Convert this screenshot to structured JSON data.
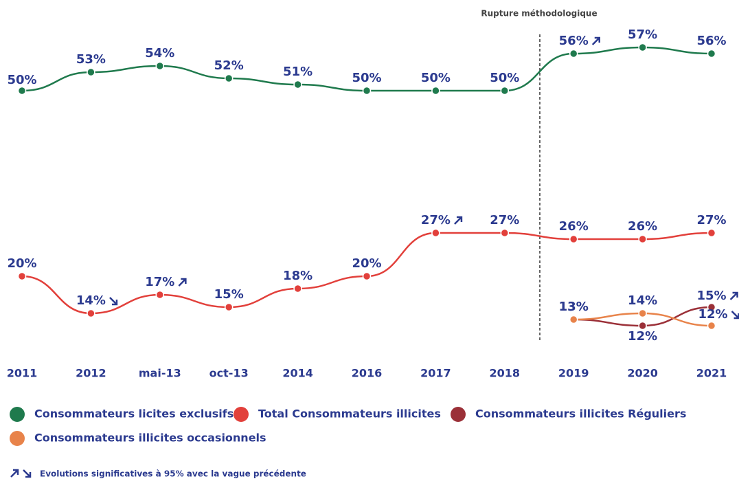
{
  "chart_data": {
    "type": "line",
    "annotation": "Rupture méthodologique",
    "footnote": "Evolutions significatives à 95% avec la vague précédente",
    "categories": [
      "2011",
      "2012",
      "mai-13",
      "oct-13",
      "2014",
      "2016",
      "2017",
      "2018",
      "2019",
      "2020",
      "2021"
    ],
    "ylim": [
      0,
      60
    ],
    "grid": false,
    "legend": "bottom",
    "series": [
      {
        "name": "Consommateurs licites exclusifs",
        "color": "#1f7a4d",
        "values": [
          50,
          53,
          54,
          52,
          51,
          50,
          50,
          50,
          56,
          57,
          56
        ],
        "value_labels": [
          "50%",
          "53%",
          "54%",
          "52%",
          "51%",
          "50%",
          "50%",
          "50%",
          "56%",
          "57%",
          "56%"
        ],
        "significance": [
          null,
          null,
          null,
          null,
          null,
          null,
          null,
          null,
          "up",
          null,
          null
        ]
      },
      {
        "name": "Total Consommateurs illicites",
        "color": "#e2403b",
        "values": [
          20,
          14,
          17,
          15,
          18,
          20,
          27,
          27,
          26,
          26,
          27
        ],
        "value_labels": [
          "20%",
          "14%",
          "17%",
          "15%",
          "18%",
          "20%",
          "27%",
          "27%",
          "26%",
          "26%",
          "27%"
        ],
        "significance": [
          null,
          "down",
          "up",
          null,
          null,
          null,
          "up",
          null,
          null,
          null,
          null
        ]
      },
      {
        "name": "Consommateurs illicites Réguliers",
        "color": "#9b3038",
        "values": [
          null,
          null,
          null,
          null,
          null,
          null,
          null,
          null,
          13,
          12,
          15
        ],
        "value_labels": [
          null,
          null,
          null,
          null,
          null,
          null,
          null,
          null,
          "13%",
          "12%",
          "15%"
        ],
        "significance": [
          null,
          null,
          null,
          null,
          null,
          null,
          null,
          null,
          null,
          null,
          "up"
        ]
      },
      {
        "name": "Consommateurs illicites occasionnels",
        "color": "#e8834a",
        "values": [
          null,
          null,
          null,
          null,
          null,
          null,
          null,
          null,
          13,
          14,
          12
        ],
        "value_labels": [
          null,
          null,
          null,
          null,
          null,
          null,
          null,
          null,
          "13%",
          "14%",
          "12%"
        ],
        "significance": [
          null,
          null,
          null,
          null,
          null,
          null,
          null,
          null,
          null,
          null,
          "down"
        ]
      }
    ]
  }
}
